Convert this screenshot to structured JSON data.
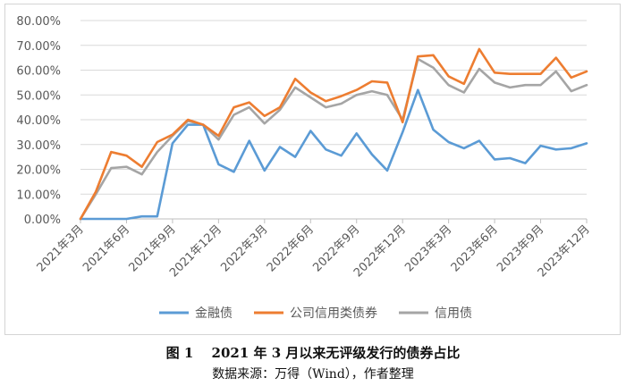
{
  "chart_data": {
    "type": "line",
    "title": "",
    "xlabel": "",
    "ylabel": "",
    "ylim": [
      0,
      80
    ],
    "y_unit": "%",
    "y_ticks": [
      "0.00%",
      "10.00%",
      "20.00%",
      "30.00%",
      "40.00%",
      "50.00%",
      "60.00%",
      "70.00%",
      "80.00%"
    ],
    "x_tick_labels": [
      "2021年3月",
      "2021年6月",
      "2021年9月",
      "2021年12月",
      "2022年3月",
      "2022年6月",
      "2022年9月",
      "2022年12月",
      "2023年3月",
      "2023年6月",
      "2023年9月",
      "2023年12月"
    ],
    "x": [
      "2021-03",
      "2021-04",
      "2021-05",
      "2021-06",
      "2021-07",
      "2021-08",
      "2021-09",
      "2021-10",
      "2021-11",
      "2021-12",
      "2022-01",
      "2022-02",
      "2022-03",
      "2022-04",
      "2022-05",
      "2022-06",
      "2022-07",
      "2022-08",
      "2022-09",
      "2022-10",
      "2022-11",
      "2022-12",
      "2023-01",
      "2023-02",
      "2023-03",
      "2023-04",
      "2023-05",
      "2023-06",
      "2023-07",
      "2023-08",
      "2023-09",
      "2023-10",
      "2023-11",
      "2023-12"
    ],
    "grid": "horizontal",
    "legend_position": "bottom",
    "series": [
      {
        "name": "金融债",
        "color": "#5b9bd5",
        "values": [
          0,
          0,
          0,
          0,
          1,
          1,
          30.5,
          38,
          38,
          22,
          19,
          31.5,
          19.5,
          29,
          25,
          35.5,
          28,
          25.5,
          34.5,
          26,
          19.5,
          35,
          52,
          36,
          31,
          28.5,
          31.5,
          24,
          24.5,
          22.5,
          29.5,
          28,
          28.5,
          30.5
        ]
      },
      {
        "name": "公司信用类债券",
        "color": "#ed7d31",
        "values": [
          0,
          11,
          27,
          25.5,
          21,
          31,
          34,
          40,
          38,
          33.5,
          45,
          47,
          41.5,
          45,
          56.5,
          51,
          47.5,
          49.5,
          52,
          55.5,
          55,
          39,
          65.5,
          66,
          57.5,
          54.5,
          68.5,
          59,
          58.5,
          58.5,
          58.5,
          65,
          57,
          59.5
        ]
      },
      {
        "name": "信用债",
        "color": "#a5a5a5",
        "values": [
          0,
          10,
          20.5,
          21,
          18,
          27,
          33.5,
          39.5,
          38,
          32,
          42,
          45,
          38.5,
          44,
          53,
          49,
          45,
          46.5,
          50,
          51.5,
          50,
          40,
          64.5,
          61,
          54,
          51,
          60.5,
          55,
          53,
          54,
          54,
          59.5,
          51.5,
          54
        ]
      }
    ]
  },
  "caption": {
    "title": "图 1　 2021 年 3 月以来无评级发行的债券占比",
    "source": "数据来源：万得（Wind），作者整理"
  }
}
